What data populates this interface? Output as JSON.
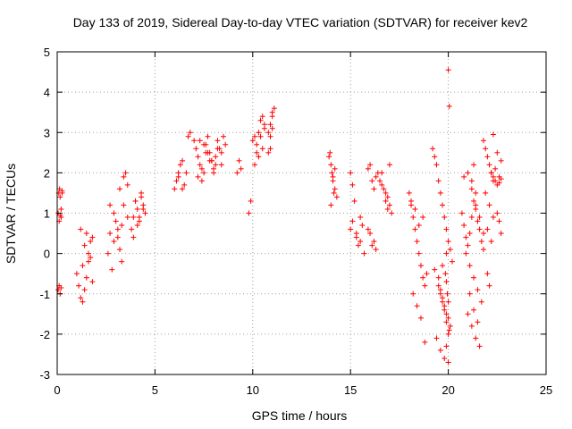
{
  "chart_data": {
    "type": "scatter",
    "title": "Day 133 of 2019, Sidereal Day-to-day VTEC variation (SDTVAR) for receiver kev2",
    "xlabel": "GPS time / hours",
    "ylabel": "SDTVAR / TECUs",
    "xlim": [
      0,
      25
    ],
    "ylim": [
      -3,
      5
    ],
    "x_ticks": [
      0,
      5,
      10,
      15,
      20,
      25
    ],
    "y_ticks": [
      -3,
      -2,
      -1,
      0,
      1,
      2,
      3,
      4,
      5
    ],
    "x_tick_labels": [
      "0",
      "5",
      "10",
      "15",
      "20",
      "25"
    ],
    "y_tick_labels": [
      "-3",
      "-2",
      "-1",
      "0",
      "1",
      "2",
      "3",
      "4",
      "5"
    ],
    "grid": true,
    "marker": "+",
    "marker_color": "#ff0000",
    "series": [
      {
        "name": "SDTVAR",
        "x": [
          0.05,
          0.08,
          0.12,
          0.15,
          0.2,
          0.25,
          0.05,
          0.1,
          0.15,
          0.2,
          0.1,
          0.15,
          0.2,
          0.25,
          1.0,
          1.1,
          1.2,
          1.3,
          1.4,
          1.5,
          1.6,
          1.7,
          1.8,
          1.2,
          1.4,
          1.6,
          1.8,
          1.3,
          1.5,
          1.7,
          2.6,
          2.7,
          2.8,
          2.9,
          3.0,
          3.1,
          3.2,
          3.3,
          2.7,
          2.9,
          3.1,
          3.3,
          3.2,
          3.4,
          3.5,
          3.6,
          3.6,
          3.4,
          3.8,
          3.9,
          4.0,
          4.1,
          4.2,
          4.3,
          4.4,
          4.5,
          3.9,
          4.1,
          4.3,
          4.0,
          4.2,
          4.4,
          6.0,
          6.1,
          6.2,
          6.3,
          6.4,
          6.5,
          6.2,
          6.4,
          6.6,
          6.7,
          6.8,
          7.0,
          7.1,
          7.2,
          7.3,
          7.4,
          7.5,
          7.6,
          7.7,
          7.8,
          7.9,
          8.0,
          8.1,
          8.2,
          8.3,
          8.4,
          8.5,
          8.6,
          7.2,
          7.4,
          7.6,
          7.8,
          8.0,
          8.2,
          8.4,
          7.3,
          7.5,
          7.7,
          7.9,
          8.1,
          9.2,
          9.3,
          9.4,
          9.8,
          9.9,
          10.0,
          10.1,
          10.1,
          10.2,
          10.3,
          10.4,
          10.5,
          10.6,
          10.2,
          10.4,
          10.6,
          10.3,
          10.5,
          10.8,
          10.9,
          11.0,
          11.1,
          10.8,
          10.9,
          11.0,
          10.9,
          11.0,
          13.9,
          14.0,
          14.1,
          14.2,
          14.3,
          14.0,
          14.1,
          14.2,
          13.95,
          14.05,
          14.15,
          15.0,
          15.1,
          15.2,
          15.0,
          15.1,
          15.3,
          15.4,
          15.5,
          15.6,
          15.3,
          15.5,
          15.7,
          15.9,
          16.0,
          16.1,
          16.2,
          16.3,
          16.4,
          16.0,
          16.2,
          15.9,
          16.1,
          16.3,
          16.5,
          16.6,
          16.7,
          16.8,
          16.9,
          17.0,
          16.6,
          16.8,
          17.0,
          17.1,
          16.9,
          18.0,
          18.1,
          18.2,
          18.3,
          18.4,
          18.5,
          18.6,
          18.7,
          18.8,
          18.9,
          18.2,
          18.4,
          18.6,
          18.8,
          18.5,
          18.7,
          18.3,
          18.1,
          19.2,
          19.3,
          19.4,
          19.5,
          19.6,
          19.7,
          19.8,
          19.9,
          20.0,
          20.1,
          20.2,
          19.3,
          19.5,
          19.7,
          19.9,
          20.1,
          19.4,
          19.6,
          19.8,
          20.0,
          19.5,
          19.6,
          19.7,
          19.8,
          19.9,
          20.0,
          19.6,
          19.8,
          20.0,
          19.7,
          19.9,
          19.85,
          19.9,
          19.95,
          20.0,
          20.05,
          19.9,
          20.0,
          20.05,
          20.7,
          20.8,
          20.9,
          21.0,
          21.1,
          21.2,
          21.3,
          21.4,
          21.5,
          21.6,
          21.7,
          21.8,
          20.8,
          21.0,
          21.2,
          21.4,
          21.6,
          21.8,
          20.9,
          21.1,
          21.3,
          21.5,
          21.7,
          21.0,
          21.2,
          21.4,
          21.6,
          21.1,
          21.3,
          21.5,
          21.2,
          21.4,
          21.3,
          21.8,
          21.9,
          22.0,
          22.1,
          22.2,
          22.3,
          21.9,
          22.1,
          22.3,
          22.0,
          22.2,
          22.2,
          22.3,
          22.4,
          22.5,
          22.6,
          22.7,
          22.3,
          22.5,
          22.7,
          22.4,
          22.6,
          22.5,
          22.6,
          22.7,
          22.0,
          22.1
        ],
        "y": [
          1.0,
          1.5,
          1.6,
          1.4,
          0.9,
          1.55,
          -0.9,
          -0.8,
          -1.0,
          -0.85,
          0.8,
          0.95,
          1.1,
          1.5,
          -0.5,
          -0.8,
          -1.1,
          -1.2,
          -0.9,
          -0.6,
          0.0,
          0.3,
          -0.7,
          0.6,
          0.2,
          -0.2,
          0.4,
          -0.3,
          0.5,
          -0.1,
          0.0,
          0.5,
          -0.4,
          0.3,
          0.8,
          0.6,
          0.1,
          -0.2,
          1.2,
          1.0,
          0.4,
          0.7,
          1.6,
          1.9,
          2.0,
          1.7,
          0.9,
          1.2,
          0.6,
          0.9,
          1.3,
          1.1,
          0.8,
          1.5,
          1.2,
          1.0,
          0.4,
          0.7,
          1.4,
          1.3,
          0.9,
          1.1,
          1.6,
          1.8,
          2.0,
          2.2,
          2.3,
          1.7,
          1.9,
          1.6,
          2.0,
          2.9,
          3.0,
          2.8,
          2.6,
          2.4,
          2.2,
          1.8,
          2.0,
          2.7,
          2.9,
          2.5,
          2.3,
          2.1,
          2.4,
          2.8,
          2.6,
          2.2,
          2.9,
          2.7,
          1.9,
          2.1,
          2.5,
          2.3,
          2.0,
          2.6,
          2.5,
          2.8,
          2.7,
          2.5,
          2.3,
          2.2,
          2.0,
          2.3,
          2.1,
          1.0,
          1.3,
          2.8,
          2.9,
          2.2,
          2.5,
          3.0,
          3.3,
          3.4,
          3.1,
          2.7,
          2.9,
          3.2,
          2.4,
          2.6,
          2.5,
          2.6,
          3.5,
          3.6,
          3.0,
          3.2,
          3.4,
          2.9,
          3.1,
          2.4,
          2.2,
          1.9,
          1.6,
          1.4,
          1.2,
          1.8,
          2.1,
          2.5,
          2.0,
          1.5,
          2.0,
          1.7,
          1.3,
          0.6,
          0.8,
          0.4,
          0.2,
          0.9,
          0.7,
          0.5,
          0.3,
          0.0,
          2.1,
          2.2,
          1.8,
          1.6,
          1.9,
          2.0,
          0.5,
          0.3,
          0.6,
          0.2,
          0.1,
          1.8,
          2.0,
          1.6,
          1.3,
          1.1,
          2.2,
          1.7,
          1.5,
          1.2,
          1.0,
          1.4,
          1.5,
          1.2,
          0.9,
          0.6,
          0.3,
          0.0,
          -0.3,
          -0.6,
          -0.8,
          -0.5,
          -1.0,
          -1.3,
          -1.6,
          -2.2,
          0.7,
          0.9,
          1.1,
          1.3,
          2.6,
          2.4,
          2.2,
          1.8,
          1.5,
          1.2,
          0.9,
          0.6,
          0.3,
          0.1,
          -0.2,
          -0.4,
          -0.8,
          -1.2,
          -1.5,
          -1.8,
          -2.1,
          -2.4,
          -2.6,
          -2.7,
          -0.6,
          -0.9,
          -1.1,
          -1.4,
          -1.7,
          -2.0,
          -1.0,
          -1.3,
          -1.6,
          -0.3,
          0.0,
          -0.5,
          -0.7,
          -1.0,
          -1.2,
          -1.9,
          -2.3,
          4.55,
          3.65,
          1.0,
          0.7,
          0.4,
          0.2,
          0.5,
          0.9,
          1.3,
          1.1,
          0.8,
          0.6,
          0.3,
          0.1,
          1.9,
          2.0,
          1.6,
          1.2,
          0.9,
          0.5,
          0.0,
          -0.3,
          -0.6,
          -0.9,
          -1.2,
          -1.5,
          -1.8,
          -2.1,
          -2.3,
          -1.0,
          -1.4,
          -1.7,
          1.8,
          1.5,
          2.2,
          2.8,
          2.6,
          2.4,
          2.2,
          2.0,
          1.8,
          1.5,
          1.2,
          0.9,
          0.6,
          0.3,
          2.0,
          1.9,
          1.8,
          1.7,
          1.75,
          1.85,
          2.95,
          2.5,
          2.3,
          2.1,
          1.9,
          1.0,
          0.8,
          0.5,
          -0.5,
          -0.8
        ]
      }
    ]
  }
}
